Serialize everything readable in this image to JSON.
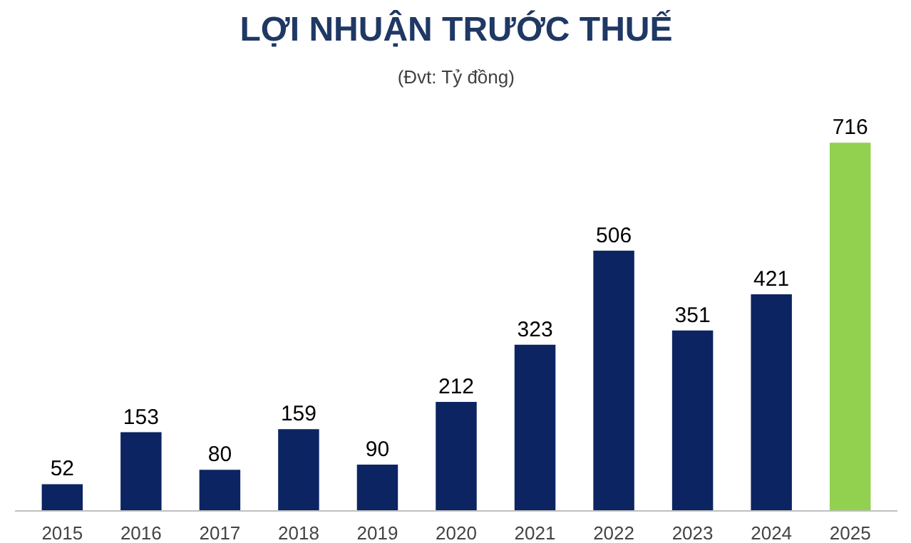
{
  "chart_data": {
    "type": "bar",
    "title": "LỢI NHUẬN TRƯỚC THUẾ",
    "subtitle": "(Đvt: Tỷ đồng)",
    "categories": [
      "2015",
      "2016",
      "2017",
      "2018",
      "2019",
      "2020",
      "2021",
      "2022",
      "2023",
      "2024",
      "2025"
    ],
    "values": [
      52,
      153,
      80,
      159,
      90,
      212,
      323,
      506,
      351,
      421,
      716
    ],
    "colors": [
      "#0c2461",
      "#0c2461",
      "#0c2461",
      "#0c2461",
      "#0c2461",
      "#0c2461",
      "#0c2461",
      "#0c2461",
      "#0c2461",
      "#0c2461",
      "#92d050"
    ],
    "data_labels": true
  }
}
